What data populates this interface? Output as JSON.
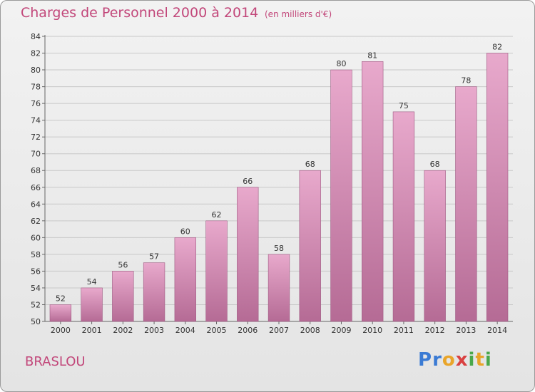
{
  "header": {
    "title": "Charges de Personnel 2000 à 2014",
    "subtitle": "(en milliers d'€)"
  },
  "footer": {
    "commune": "BRASLOU",
    "logo_letters": [
      {
        "char": "P",
        "color": "#3b7bd4"
      },
      {
        "char": "r",
        "color": "#3b7bd4"
      },
      {
        "char": "o",
        "color": "#e9a52a"
      },
      {
        "char": "x",
        "color": "#d94141"
      },
      {
        "char": "i",
        "color": "#4aa84a"
      },
      {
        "char": "t",
        "color": "#e9a52a"
      },
      {
        "char": "i",
        "color": "#4aa84a"
      }
    ]
  },
  "colors": {
    "bar_top": "#e8a9cc",
    "bar_bottom": "#b56b95",
    "bar_edge": "#9e5a82",
    "accent": "#c2477a",
    "grid": "#c8c8c8"
  },
  "chart_data": {
    "type": "bar",
    "title": "Charges de Personnel 2000 à 2014",
    "subtitle": "(en milliers d'€)",
    "categories": [
      "2000",
      "2001",
      "2002",
      "2003",
      "2004",
      "2005",
      "2006",
      "2007",
      "2008",
      "2009",
      "2010",
      "2011",
      "2012",
      "2013",
      "2014"
    ],
    "values": [
      52,
      54,
      56,
      57,
      60,
      62,
      66,
      58,
      68,
      80,
      81,
      75,
      68,
      78,
      82
    ],
    "ylim": [
      50,
      84
    ],
    "yticks": [
      50,
      52,
      54,
      56,
      58,
      60,
      62,
      64,
      66,
      68,
      70,
      72,
      74,
      76,
      78,
      80,
      82,
      84
    ],
    "grid": true,
    "xlabel": "",
    "ylabel": ""
  }
}
